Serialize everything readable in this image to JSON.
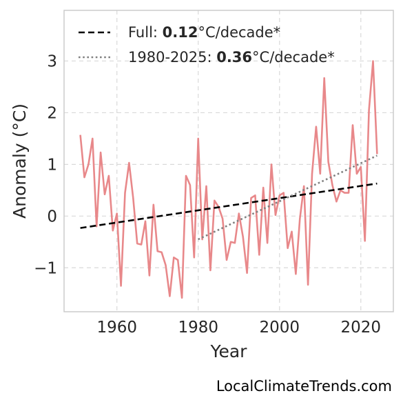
{
  "chart_data": {
    "type": "line",
    "xlabel": "Year",
    "ylabel": "Anomaly (°C)",
    "xlim": [
      1947,
      2028
    ],
    "ylim": [
      -1.85,
      3.98
    ],
    "xticks": [
      1960,
      1980,
      2000,
      2020
    ],
    "yticks": [
      -1,
      0,
      1,
      2,
      3
    ],
    "grid": true,
    "legend_placement": "top-left",
    "colors": {
      "anomaly": "#e8888a",
      "full_trend": "#000000",
      "recent_trend": "#808080"
    },
    "series": [
      {
        "kind": "anomaly",
        "x": [
          1951,
          1952,
          1953,
          1954,
          1955,
          1956,
          1957,
          1958,
          1959,
          1960,
          1961,
          1962,
          1963,
          1964,
          1965,
          1966,
          1967,
          1968,
          1969,
          1970,
          1971,
          1972,
          1973,
          1974,
          1975,
          1976,
          1977,
          1978,
          1979,
          1980,
          1981,
          1982,
          1983,
          1984,
          1985,
          1986,
          1987,
          1988,
          1989,
          1990,
          1991,
          1992,
          1993,
          1994,
          1995,
          1996,
          1997,
          1998,
          1999,
          2000,
          2001,
          2002,
          2003,
          2004,
          2005,
          2006,
          2007,
          2008,
          2009,
          2010,
          2011,
          2012,
          2013,
          2014,
          2015,
          2016,
          2017,
          2018,
          2019,
          2020,
          2021,
          2022,
          2023,
          2024
        ],
        "y": [
          1.57,
          0.75,
          1.0,
          1.5,
          -0.2,
          1.23,
          0.42,
          0.78,
          -0.28,
          0.05,
          -1.35,
          0.45,
          1.03,
          0.35,
          -0.53,
          -0.55,
          -0.1,
          -1.15,
          0.22,
          -0.68,
          -0.7,
          -0.95,
          -1.55,
          -0.8,
          -0.85,
          -1.58,
          0.78,
          0.6,
          -0.8,
          1.5,
          -0.45,
          0.58,
          -1.05,
          0.3,
          0.18,
          -0.05,
          -0.85,
          -0.5,
          -0.52,
          0.05,
          -0.4,
          -1.1,
          0.35,
          0.4,
          -0.75,
          0.55,
          -0.52,
          1.0,
          0.02,
          0.4,
          0.45,
          -0.62,
          -0.3,
          -1.12,
          -0.05,
          0.58,
          -1.33,
          0.82,
          1.73,
          0.82,
          2.67,
          1.05,
          0.6,
          0.28,
          0.5,
          0.45,
          0.45,
          1.76,
          0.82,
          0.95,
          -0.48,
          2.05,
          3.0,
          1.2
        ]
      },
      {
        "kind": "full_trend",
        "name": "Full",
        "rate": "0.12",
        "unit": "°C/decade*",
        "x": [
          1951,
          2024
        ],
        "y": [
          -0.23,
          0.63
        ]
      },
      {
        "kind": "recent_trend",
        "name": "1980-2025",
        "rate": "0.36",
        "unit": "°C/decade*",
        "x": [
          1980,
          2024
        ],
        "y": [
          -0.45,
          1.17
        ]
      }
    ]
  },
  "watermark": "LocalClimateTrends.com"
}
